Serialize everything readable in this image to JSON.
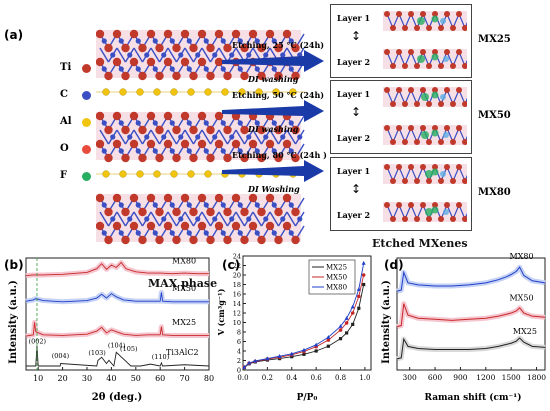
{
  "panel_a": {
    "label": "(a)",
    "legend": [
      {
        "name": "Ti",
        "color": "#c0392b"
      },
      {
        "name": "C",
        "color": "#3b4fc4"
      },
      {
        "name": "Al",
        "color": "#f1c40f"
      },
      {
        "name": "O",
        "color": "#e74c3c"
      },
      {
        "name": "F",
        "color": "#27ae60"
      }
    ],
    "max_phase_label": "MAX phase",
    "arrows": [
      {
        "top": "Etching, 25 °C (24h)",
        "bottom": "DI washing"
      },
      {
        "top": "Etching, 50 °C (24h)",
        "bottom": "DI washing"
      },
      {
        "top": "Etching, 80 °C (24h )",
        "bottom": "DI Washing"
      }
    ],
    "boxes": [
      {
        "l1": "Layer 1",
        "l2": "Layer 2",
        "name": "MX25"
      },
      {
        "l1": "Layer 1",
        "l2": "Layer 2",
        "name": "MX50"
      },
      {
        "l1": "Layer 1",
        "l2": "Layer 2",
        "name": "MX80"
      }
    ],
    "etched_label": "Etched MXenes"
  },
  "panel_b": {
    "label": "(b)",
    "ylabel": "Intensity (a.u.)",
    "xlabel": "2θ (deg.)",
    "xticks": [
      "10",
      "20",
      "30",
      "40",
      "50",
      "60",
      "70",
      "80"
    ],
    "series": [
      "MX80",
      "MX50",
      "MX25",
      "Ti3AlC2"
    ],
    "peaks": [
      "(002)",
      "(004)",
      "(103)",
      "(104)",
      "(105)",
      "(110)"
    ],
    "ti3alc2_label": "Ti3AlC2"
  },
  "panel_c": {
    "label": "(c)",
    "ylabel": "V (cm³g⁻¹)",
    "xlabel": "P/P₀",
    "yticks": [
      "0",
      "2",
      "4",
      "6",
      "8",
      "10",
      "12",
      "14",
      "16",
      "18",
      "20",
      "22",
      "24"
    ],
    "xticks": [
      "0.0",
      "0.2",
      "0.4",
      "0.6",
      "0.8",
      "1.0"
    ],
    "legend": [
      "MX25",
      "MX50",
      "MX80"
    ]
  },
  "panel_d": {
    "label": "(d)",
    "ylabel": "Intensity (a.u.)",
    "xlabel": "Raman shift (cm⁻¹)",
    "xticks": [
      "300",
      "600",
      "900",
      "1200",
      "1500",
      "1800"
    ],
    "series": [
      "MX80",
      "MX50",
      "MX25"
    ]
  },
  "colors": {
    "black": "#222222",
    "red": "#c62828",
    "blue": "#1e3fc8",
    "band_pink": "#f5c6cf",
    "band_blue": "#c6d2f5",
    "arrow": "#1a3aa8"
  },
  "chart_data": [
    {
      "type": "line",
      "title": "",
      "xlabel": "2θ (deg.)",
      "ylabel": "Intensity (a.u.)",
      "xlim": [
        5,
        80
      ],
      "series": [
        {
          "name": "Ti3AlC2",
          "x": [
            5,
            9,
            9.5,
            10,
            19,
            19.2,
            34,
            34.5,
            36,
            38,
            39,
            41,
            42,
            48,
            52,
            56,
            60,
            60.5,
            61,
            70,
            75,
            80
          ],
          "y": [
            0,
            0,
            3.2,
            0,
            0,
            0.4,
            0,
            0.9,
            1.4,
            0.4,
            0.9,
            0,
            2.2,
            0,
            0,
            0.3,
            0,
            0.5,
            0,
            0.2,
            0.1,
            0
          ]
        },
        {
          "name": "MX25",
          "x": [
            5,
            8,
            8.5,
            9,
            12,
            20,
            30,
            34,
            36,
            38,
            40,
            42,
            45,
            50,
            55,
            60,
            60.5,
            61,
            65,
            70,
            75,
            80
          ],
          "y": [
            4.8,
            5,
            7,
            5.5,
            5,
            4.9,
            5.1,
            5.6,
            6.2,
            5.3,
            5.8,
            5.5,
            5.1,
            4.9,
            5,
            5,
            6.3,
            5,
            4.9,
            4.9,
            4.9,
            4.9
          ]
        },
        {
          "name": "MX50",
          "x": [
            5,
            8,
            9,
            12,
            20,
            30,
            34,
            36,
            38,
            40,
            42,
            45,
            50,
            55,
            60,
            60.5,
            61,
            65,
            70,
            75,
            80
          ],
          "y": [
            10.4,
            10.6,
            10.8,
            10.5,
            10.3,
            10.5,
            10.9,
            11.5,
            10.9,
            11.6,
            11.1,
            10.6,
            10.4,
            10.4,
            10.4,
            11.8,
            10.4,
            10.3,
            10.3,
            10.3,
            10.3
          ]
        },
        {
          "name": "MX80",
          "x": [
            5,
            8,
            12,
            20,
            30,
            34,
            36,
            38,
            40,
            42,
            44,
            46,
            50,
            55,
            60,
            65,
            70,
            75,
            80
          ],
          "y": [
            14.5,
            14.6,
            14.6,
            14.7,
            15,
            15.6,
            16.4,
            15.5,
            16.2,
            15.8,
            16.6,
            15.6,
            15.1,
            14.9,
            14.9,
            14.8,
            14.9,
            14.8,
            14.8
          ]
        }
      ]
    },
    {
      "type": "line",
      "title": "",
      "xlabel": "P/P₀",
      "ylabel": "V (cm³g⁻¹)",
      "xlim": [
        0,
        1.05
      ],
      "ylim": [
        0,
        24
      ],
      "series": [
        {
          "name": "MX25",
          "x": [
            0.01,
            0.05,
            0.1,
            0.2,
            0.3,
            0.4,
            0.5,
            0.6,
            0.7,
            0.8,
            0.85,
            0.9,
            0.95,
            0.99
          ],
          "y": [
            0.5,
            1.3,
            1.7,
            2.1,
            2.4,
            2.8,
            3.3,
            4.0,
            5.0,
            6.6,
            7.8,
            9.6,
            13,
            18
          ]
        },
        {
          "name": "MX50",
          "x": [
            0.01,
            0.05,
            0.1,
            0.2,
            0.3,
            0.4,
            0.5,
            0.6,
            0.7,
            0.8,
            0.85,
            0.9,
            0.95,
            0.99
          ],
          "y": [
            0.6,
            1.4,
            1.8,
            2.3,
            2.7,
            3.2,
            3.9,
            4.9,
            6.3,
            8.4,
            9.9,
            12,
            15.5,
            20
          ]
        },
        {
          "name": "MX80",
          "x": [
            0.01,
            0.05,
            0.1,
            0.2,
            0.3,
            0.4,
            0.5,
            0.6,
            0.7,
            0.8,
            0.85,
            0.9,
            0.95,
            0.99
          ],
          "y": [
            0.6,
            1.5,
            1.9,
            2.4,
            2.9,
            3.4,
            4.2,
            5.3,
            6.9,
            9.2,
            10.9,
            13.3,
            17,
            22.5
          ]
        }
      ]
    },
    {
      "type": "line",
      "title": "",
      "xlabel": "Raman shift (cm⁻¹)",
      "ylabel": "Intensity (a.u.)",
      "xlim": [
        150,
        1900
      ],
      "series": [
        {
          "name": "MX25",
          "x": [
            150,
            200,
            230,
            280,
            400,
            600,
            800,
            1000,
            1200,
            1350,
            1450,
            1500,
            1560,
            1600,
            1650,
            1750,
            1900
          ],
          "y": [
            0.3,
            0.4,
            2.2,
            1.5,
            1.3,
            1.2,
            1.2,
            1.2,
            1.3,
            1.5,
            1.7,
            1.8,
            2.0,
            2.3,
            1.9,
            1.5,
            1.4
          ]
        },
        {
          "name": "MX50",
          "x": [
            150,
            200,
            230,
            280,
            400,
            600,
            800,
            1000,
            1200,
            1350,
            1450,
            1500,
            1560,
            1600,
            1650,
            1750,
            1900
          ],
          "y": [
            3.4,
            3.5,
            5.6,
            4.5,
            4.2,
            4.1,
            4.0,
            4.1,
            4.2,
            4.4,
            4.6,
            4.7,
            4.9,
            5.2,
            4.7,
            4.4,
            4.3
          ]
        },
        {
          "name": "MX80",
          "x": [
            150,
            200,
            230,
            280,
            400,
            600,
            800,
            1000,
            1200,
            1350,
            1450,
            1500,
            1560,
            1600,
            1650,
            1750,
            1900
          ],
          "y": [
            6.8,
            6.9,
            8.6,
            7.6,
            7.4,
            7.3,
            7.3,
            7.4,
            7.6,
            7.9,
            8.2,
            8.4,
            8.7,
            9.1,
            8.3,
            7.8,
            7.6
          ]
        }
      ]
    }
  ]
}
